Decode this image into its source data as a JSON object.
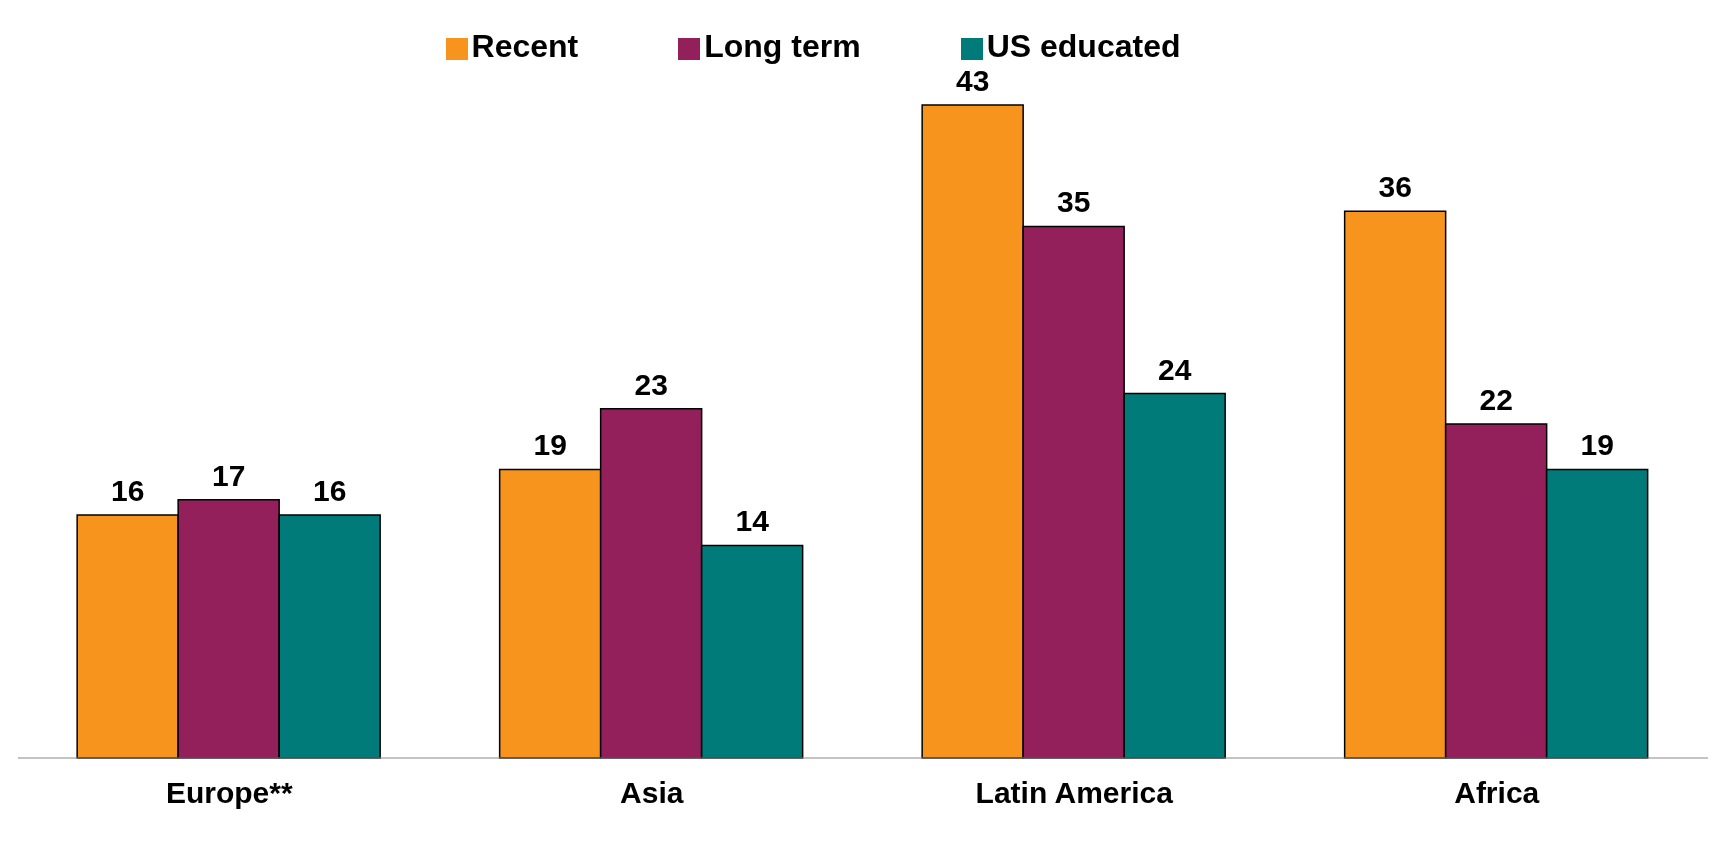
{
  "chart_data": {
    "type": "bar",
    "categories": [
      "Europe**",
      "Asia",
      "Latin America",
      "Africa"
    ],
    "series": [
      {
        "name": "Recent",
        "color": "#f7941d",
        "values": [
          16,
          19,
          43,
          36
        ]
      },
      {
        "name": "Long term",
        "color": "#93205a",
        "values": [
          17,
          23,
          35,
          22
        ]
      },
      {
        "name": "US educated",
        "color": "#007b7a",
        "values": [
          16,
          14,
          24,
          19
        ]
      }
    ],
    "data_labels": true,
    "legend": "top",
    "tick_labels": "x",
    "grid": false
  }
}
